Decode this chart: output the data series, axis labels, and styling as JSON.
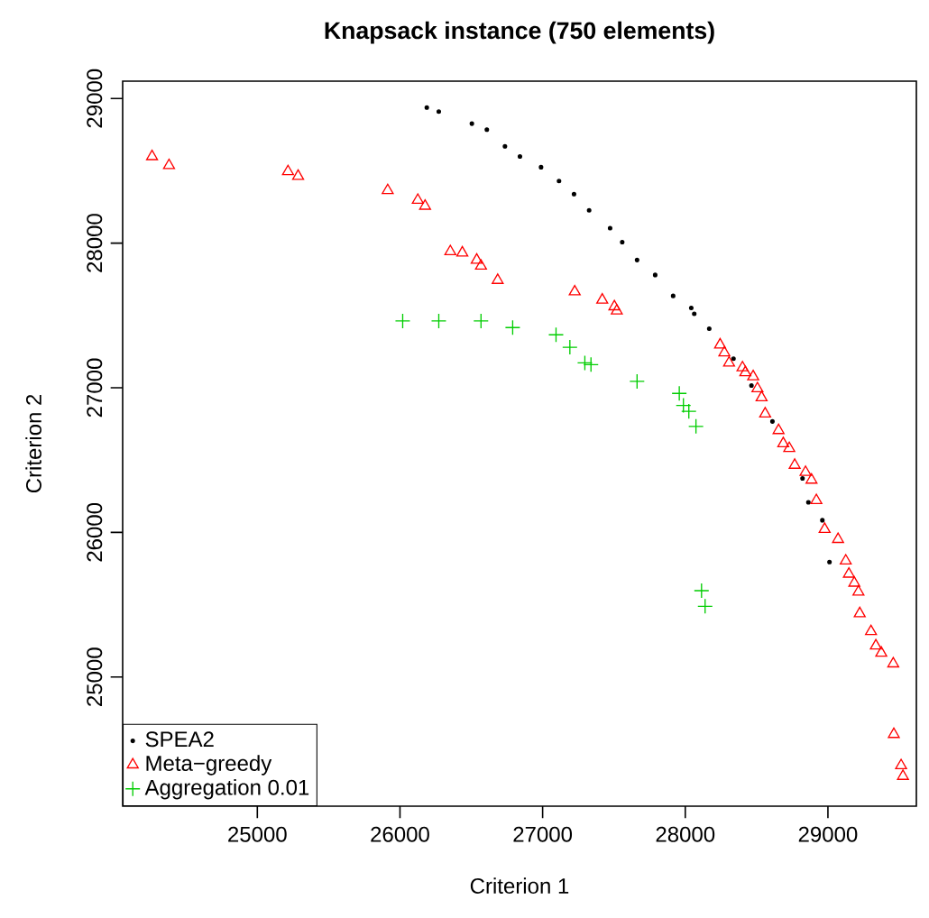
{
  "chart_data": {
    "type": "scatter",
    "title": "Knapsack instance (750 elements)",
    "xlabel": "Criterion 1",
    "ylabel": "Criterion 2",
    "xlim": [
      24056,
      29620
    ],
    "ylim": [
      24107,
      29120
    ],
    "xticks": [
      25000,
      26000,
      27000,
      28000,
      29000
    ],
    "yticks": [
      25000,
      26000,
      27000,
      28000,
      29000
    ],
    "legend": "bottom left",
    "series": [
      {
        "name": "SPEA2",
        "color": "#000000",
        "marker": "circle",
        "x": [
          26188,
          26272,
          26504,
          26609,
          26736,
          26841,
          26989,
          27115,
          27220,
          27326,
          27473,
          27558,
          27662,
          27789,
          27915,
          28042,
          28063,
          28168,
          28338,
          28464,
          28611,
          28717,
          28822,
          28863,
          28961,
          29011
        ],
        "values": [
          28938,
          28909,
          28826,
          28785,
          28669,
          28599,
          28525,
          28429,
          28339,
          28227,
          28103,
          28007,
          27883,
          27780,
          27635,
          27552,
          27511,
          27408,
          27201,
          27015,
          26767,
          null,
          26373,
          26208,
          26084,
          25795
        ]
      },
      {
        "name": "Meta−greedy",
        "color": "#ff0000",
        "marker": "triangle",
        "x": [
          24262,
          24381,
          25215,
          25286,
          25914,
          26125,
          26176,
          26353,
          26437,
          26538,
          26568,
          26685,
          27225,
          27418,
          27503,
          27520,
          28244,
          28274,
          28307,
          28401,
          28421,
          28476,
          28506,
          28535,
          28560,
          28654,
          28687,
          28729,
          28767,
          28843,
          28885,
          28919,
          28977,
          29071,
          29125,
          29147,
          29185,
          29214,
          29223,
          29302,
          29336,
          29374,
          29458,
          29462,
          29513,
          29526
        ],
        "values": [
          28599,
          28537,
          28495,
          28463,
          28364,
          28297,
          28256,
          27942,
          27933,
          27883,
          27842,
          27743,
          27664,
          27607,
          27561,
          27532,
          27297,
          27242,
          27172,
          27139,
          27105,
          27077,
          26994,
          26932,
          26820,
          26705,
          26614,
          26581,
          26465,
          26416,
          26362,
          26221,
          26022,
          25952,
          25803,
          25712,
          25650,
          25588,
          25439,
          25315,
          25216,
          25166,
          25092,
          24604,
          24388,
          24314
        ]
      },
      {
        "name": "Aggregation 0.01",
        "color": "#00cd00",
        "marker": "cross",
        "x": [
          26019,
          26272,
          26568,
          26790,
          27094,
          27191,
          27296,
          27339,
          27662,
          27958,
          27987,
          28025,
          28075,
          28114,
          28139
        ],
        "values": [
          27462,
          27462,
          27462,
          27416,
          27366,
          27280,
          27172,
          27160,
          27044,
          26961,
          26878,
          26837,
          26733,
          25597,
          25489
        ]
      }
    ]
  }
}
